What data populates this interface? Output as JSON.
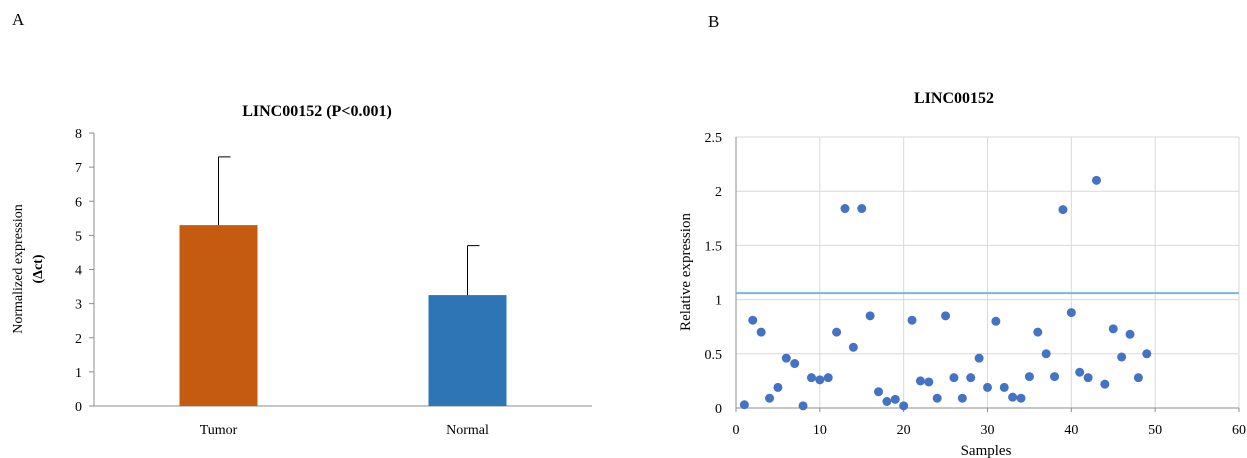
{
  "panels": {
    "a_label": "A",
    "b_label": "B"
  },
  "chart_data": [
    {
      "type": "bar",
      "title": "LINC00152 (P<0.001)",
      "ylabel_line1": "Normalized expression",
      "ylabel_line2": "(Δct)",
      "xlabel": "",
      "categories": [
        "Tumor",
        "Normal"
      ],
      "values": [
        5.3,
        3.25
      ],
      "error_upper": [
        2.0,
        1.45
      ],
      "colors": [
        "#c55a11",
        "#2e75b6"
      ],
      "ylim": [
        0,
        8
      ],
      "yticks": [
        0,
        1,
        2,
        3,
        4,
        5,
        6,
        7,
        8
      ],
      "grid": false,
      "legend": "none"
    },
    {
      "type": "scatter",
      "title": "LINC00152",
      "xlabel": "Samples",
      "ylabel": "Relative expression",
      "xlim": [
        0,
        60
      ],
      "ylim": [
        0,
        2.5
      ],
      "xticks": [
        0,
        10,
        20,
        30,
        40,
        50,
        60
      ],
      "yticks": [
        0,
        0.5,
        1,
        1.5,
        2,
        2.5
      ],
      "ytick_labels": [
        "0",
        "0.5",
        "1",
        "1.5",
        "2",
        "2.5"
      ],
      "reference_line_y": 1.06,
      "grid": true,
      "legend": "none",
      "point_color": "#4472c4",
      "line_color": "#7fb2de",
      "x": [
        1,
        2,
        3,
        4,
        5,
        6,
        7,
        8,
        9,
        10,
        11,
        12,
        13,
        14,
        15,
        16,
        17,
        18,
        19,
        20,
        21,
        22,
        23,
        24,
        25,
        26,
        27,
        28,
        29,
        30,
        31,
        32,
        33,
        34,
        35,
        36,
        37,
        38,
        39,
        40,
        41,
        42,
        43,
        44,
        45,
        46,
        47,
        48,
        49
      ],
      "y": [
        0.03,
        0.81,
        0.7,
        0.09,
        0.19,
        0.46,
        0.41,
        0.02,
        0.28,
        0.26,
        0.28,
        0.7,
        1.84,
        0.56,
        1.84,
        0.85,
        0.15,
        0.06,
        0.08,
        0.02,
        0.81,
        0.25,
        0.24,
        0.09,
        0.85,
        0.28,
        0.09,
        0.28,
        0.46,
        0.19,
        0.8,
        0.19,
        0.1,
        0.09,
        0.29,
        0.7,
        0.5,
        0.29,
        1.83,
        0.88,
        0.33,
        0.28,
        2.1,
        0.22,
        0.73,
        0.47,
        0.68,
        0.28,
        0.5
      ]
    }
  ]
}
